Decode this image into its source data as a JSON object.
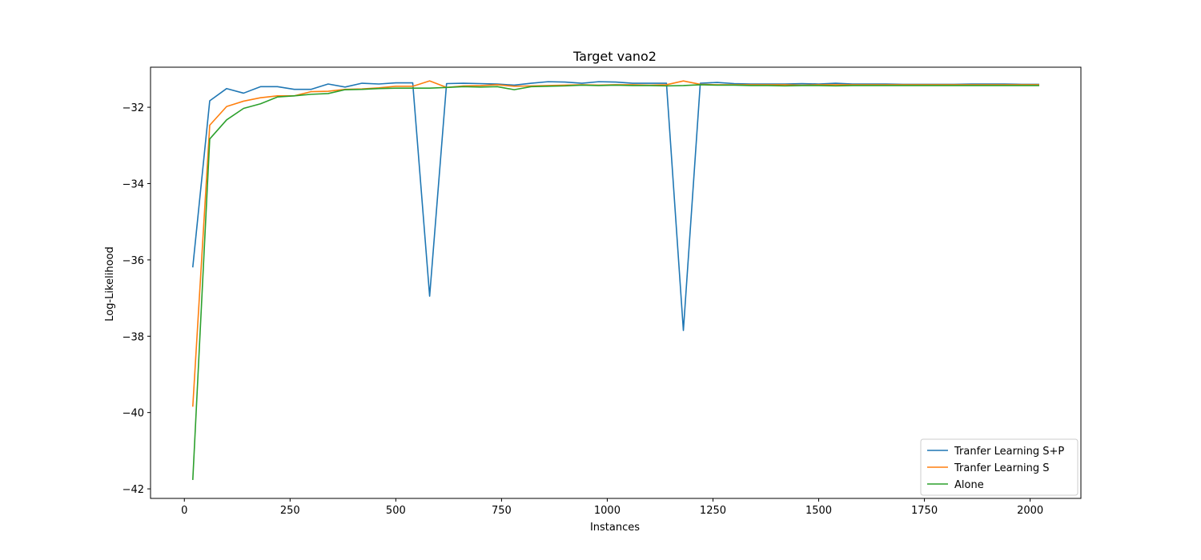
{
  "chart_data": {
    "type": "line",
    "title": "Target vano2",
    "xlabel": "Instances",
    "ylabel": "Log-Likelihood",
    "xlim": [
      -80,
      2120
    ],
    "ylim": [
      -42.25,
      -30.95
    ],
    "xticks": [
      0,
      250,
      500,
      750,
      1000,
      1250,
      1500,
      1750,
      2000
    ],
    "xtick_labels": [
      "0",
      "250",
      "500",
      "750",
      "1000",
      "1250",
      "1500",
      "1750",
      "2000"
    ],
    "yticks": [
      -42,
      -40,
      -38,
      -36,
      -34,
      -32
    ],
    "ytick_labels": [
      "−42",
      "−40",
      "−38",
      "−36",
      "−34",
      "−32"
    ],
    "grid": false,
    "legend_position": "bottom-right",
    "x": [
      20,
      60,
      100,
      140,
      180,
      220,
      260,
      300,
      340,
      380,
      420,
      460,
      500,
      540,
      580,
      620,
      660,
      700,
      740,
      780,
      820,
      860,
      900,
      940,
      980,
      1020,
      1060,
      1100,
      1140,
      1180,
      1220,
      1260,
      1300,
      1340,
      1380,
      1420,
      1460,
      1500,
      1540,
      1580,
      1620,
      1660,
      1700,
      1740,
      1780,
      1820,
      1860,
      1900,
      1940,
      1980,
      2020
    ],
    "series": [
      {
        "name": "Tranfer Learning S+P",
        "color": "#1f77b4",
        "values": [
          -36.18,
          -31.83,
          -31.51,
          -31.63,
          -31.46,
          -31.46,
          -31.53,
          -31.53,
          -31.39,
          -31.47,
          -31.37,
          -31.39,
          -31.36,
          -31.36,
          -36.95,
          -31.38,
          -31.37,
          -31.38,
          -31.39,
          -31.42,
          -31.37,
          -31.33,
          -31.34,
          -31.37,
          -31.33,
          -31.34,
          -31.37,
          -31.37,
          -31.37,
          -37.85,
          -31.37,
          -31.35,
          -31.38,
          -31.39,
          -31.39,
          -31.39,
          -31.38,
          -31.39,
          -31.37,
          -31.39,
          -31.39,
          -31.39,
          -31.4,
          -31.4,
          -31.4,
          -31.4,
          -31.39,
          -31.39,
          -31.39,
          -31.4,
          -31.4
        ]
      },
      {
        "name": "Tranfer Learning S",
        "color": "#ff7f0e",
        "values": [
          -39.83,
          -32.47,
          -31.98,
          -31.84,
          -31.75,
          -31.7,
          -31.7,
          -31.59,
          -31.58,
          -31.53,
          -31.52,
          -31.49,
          -31.45,
          -31.45,
          -31.31,
          -31.48,
          -31.44,
          -31.43,
          -31.41,
          -31.45,
          -31.44,
          -31.43,
          -31.42,
          -31.41,
          -31.42,
          -31.41,
          -31.41,
          -31.42,
          -31.41,
          -31.31,
          -31.4,
          -31.41,
          -31.41,
          -31.41,
          -31.41,
          -31.41,
          -31.42,
          -31.41,
          -31.41,
          -31.41,
          -31.41,
          -31.41,
          -31.41,
          -31.41,
          -31.41,
          -31.41,
          -31.41,
          -31.41,
          -31.41,
          -31.41,
          -31.41
        ]
      },
      {
        "name": "Alone",
        "color": "#2ca02c",
        "values": [
          -41.75,
          -32.83,
          -32.33,
          -32.03,
          -31.91,
          -31.73,
          -31.7,
          -31.66,
          -31.64,
          -31.54,
          -31.53,
          -31.51,
          -31.5,
          -31.5,
          -31.5,
          -31.48,
          -31.46,
          -31.47,
          -31.46,
          -31.54,
          -31.46,
          -31.45,
          -31.44,
          -31.42,
          -31.43,
          -31.42,
          -31.43,
          -31.43,
          -31.44,
          -31.43,
          -31.41,
          -31.42,
          -31.42,
          -31.43,
          -31.43,
          -31.44,
          -31.43,
          -31.43,
          -31.44,
          -31.43,
          -31.43,
          -31.43,
          -31.43,
          -31.43,
          -31.43,
          -31.43,
          -31.43,
          -31.43,
          -31.43,
          -31.43,
          -31.43
        ]
      }
    ]
  }
}
